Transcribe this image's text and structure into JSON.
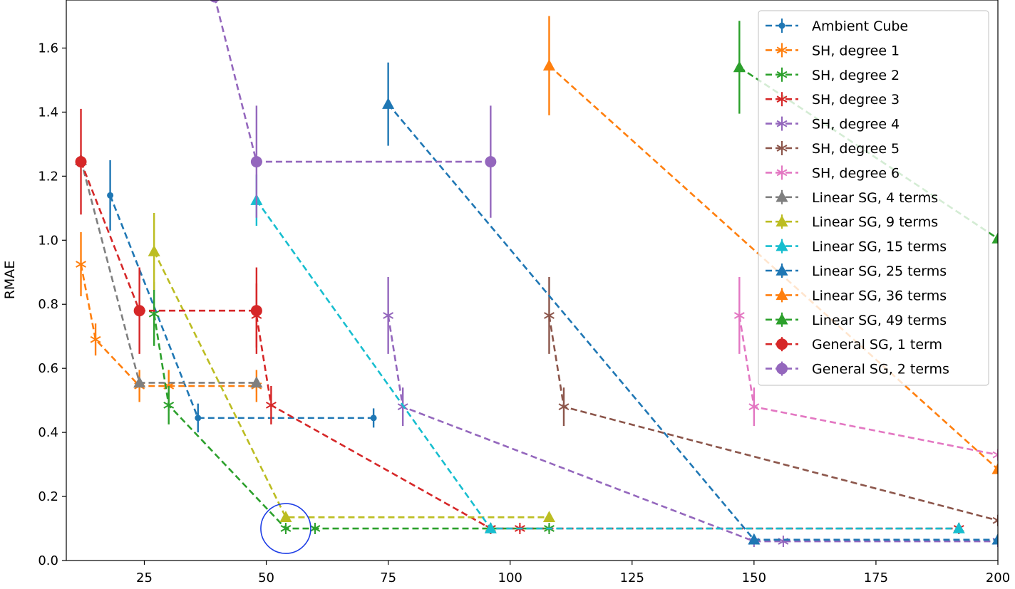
{
  "chart_data": {
    "type": "line",
    "title": "",
    "xlabel": "",
    "ylabel": "RMAE",
    "xlim": [
      9,
      200
    ],
    "ylim": [
      0,
      1.75
    ],
    "xticks": [
      25,
      50,
      75,
      100,
      125,
      150,
      175,
      200
    ],
    "yticks": [
      0.0,
      0.2,
      0.4,
      0.6,
      0.8,
      1.0,
      1.2,
      1.4,
      1.6
    ],
    "grid": false,
    "legend_position": "top-right",
    "series": [
      {
        "name": "Ambient Cube",
        "color": "#1f77b4",
        "marker": "dot",
        "x": [
          18,
          36,
          72
        ],
        "y": [
          1.14,
          0.445,
          0.445
        ],
        "err": [
          0.11,
          0.045,
          0.03
        ]
      },
      {
        "name": "SH, degree 1",
        "color": "#ff7f0e",
        "marker": "star",
        "x": [
          12,
          15,
          24,
          30,
          48
        ],
        "y": [
          0.925,
          0.69,
          0.545,
          0.545,
          0.545
        ],
        "err": [
          0.1,
          0.05,
          0.05,
          0.05,
          0.05
        ]
      },
      {
        "name": "SH, degree 2",
        "color": "#2ca02c",
        "marker": "star",
        "x": [
          27,
          30,
          54,
          60,
          96,
          108
        ],
        "y": [
          0.77,
          0.485,
          0.1,
          0.1,
          0.1,
          0.1
        ],
        "err": [
          0.1,
          0.06,
          0.01,
          0.01,
          0.01,
          0.01
        ]
      },
      {
        "name": "SH, degree 3",
        "color": "#d62728",
        "marker": "star",
        "x": [
          48,
          51,
          96,
          102,
          192
        ],
        "y": [
          0.765,
          0.485,
          0.1,
          0.1,
          0.1
        ],
        "err": [
          0.1,
          0.06,
          0.01,
          0.01,
          0.01
        ]
      },
      {
        "name": "SH, degree 4",
        "color": "#9467bd",
        "marker": "star",
        "x": [
          75,
          78,
          150,
          156,
          200
        ],
        "y": [
          0.765,
          0.48,
          0.06,
          0.06,
          0.06
        ],
        "err": [
          0.12,
          0.06,
          0.005,
          0.005,
          0.005
        ]
      },
      {
        "name": "SH, degree 5",
        "color": "#8c564b",
        "marker": "star",
        "x": [
          108,
          111,
          200
        ],
        "y": [
          0.765,
          0.48,
          0.125
        ],
        "err": [
          0.12,
          0.06,
          0.01
        ]
      },
      {
        "name": "SH, degree 6",
        "color": "#e377c2",
        "marker": "star",
        "x": [
          147,
          150,
          200
        ],
        "y": [
          0.765,
          0.48,
          0.33
        ],
        "err": [
          0.12,
          0.06,
          0.01
        ]
      },
      {
        "name": "Linear SG, 4 terms",
        "color": "#7f7f7f",
        "marker": "triangle",
        "x": [
          12,
          24,
          48
        ],
        "y": [
          1.25,
          0.555,
          0.555
        ],
        "err": [
          0.0,
          0.0,
          0.0
        ]
      },
      {
        "name": "Linear SG, 9 terms",
        "color": "#bcbd22",
        "marker": "triangle",
        "x": [
          27,
          54,
          108
        ],
        "y": [
          0.965,
          0.135,
          0.135
        ],
        "err": [
          0.12,
          0.01,
          0.01
        ]
      },
      {
        "name": "Linear SG, 15 terms",
        "color": "#17becf",
        "marker": "triangle",
        "x": [
          48,
          96,
          192
        ],
        "y": [
          1.125,
          0.1,
          0.1
        ],
        "err": [
          0.08,
          0.005,
          0.005
        ]
      },
      {
        "name": "Linear SG, 25 terms",
        "color": "#1f77b4",
        "marker": "triangle",
        "x": [
          75,
          150,
          200
        ],
        "y": [
          1.425,
          0.065,
          0.065
        ],
        "err": [
          0.13,
          0.005,
          0.005
        ]
      },
      {
        "name": "Linear SG, 36 terms",
        "color": "#ff7f0e",
        "marker": "triangle",
        "x": [
          108,
          200
        ],
        "y": [
          1.545,
          0.285
        ],
        "err": [
          0.155,
          0.0
        ]
      },
      {
        "name": "Linear SG, 49 terms",
        "color": "#2ca02c",
        "marker": "triangle",
        "x": [
          147,
          200
        ],
        "y": [
          1.54,
          1.005
        ],
        "err": [
          0.145,
          0.0
        ]
      },
      {
        "name": "General SG, 1 term",
        "color": "#d62728",
        "marker": "circle",
        "x": [
          12,
          24,
          48
        ],
        "y": [
          1.245,
          0.78,
          0.78
        ],
        "err": [
          0.165,
          0.135,
          0.135
        ]
      },
      {
        "name": "General SG, 2 terms",
        "color": "#9467bd",
        "marker": "circle",
        "x": [
          39.4,
          48,
          96
        ],
        "y": [
          1.76,
          1.245,
          1.245
        ],
        "err": [
          0.0,
          0.175,
          0.175
        ]
      }
    ],
    "annotation": {
      "type": "circle",
      "color": "#1f3fe6",
      "x": 54,
      "y": 0.1
    }
  }
}
